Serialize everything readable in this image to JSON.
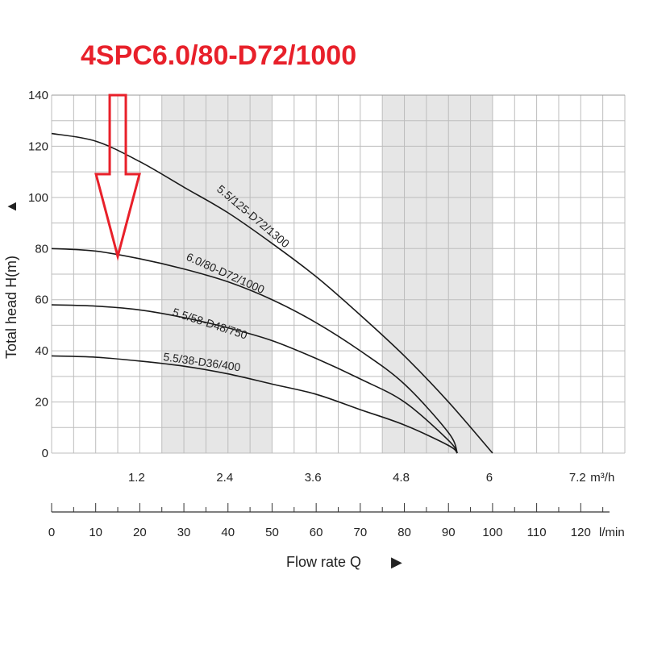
{
  "title": "4SPC6.0/80-D72/1000",
  "chart_data": {
    "type": "line",
    "ylabel": "Total head H(m)",
    "xlabel": "Flow rate Q",
    "x_unit": "l/min",
    "x2_unit": "m³/h",
    "ylim": [
      0,
      140
    ],
    "xlim": [
      0,
      130
    ],
    "y_ticks": [
      0,
      20,
      40,
      60,
      80,
      100,
      120,
      140
    ],
    "x_ticks": [
      0,
      10,
      20,
      30,
      40,
      50,
      60,
      70,
      80,
      90,
      100,
      110,
      120
    ],
    "x2_ticks": [
      "1.2",
      "2.4",
      "3.6",
      "4.8",
      "6",
      "7.2"
    ],
    "x2_tick_positions_lmin": [
      20,
      40,
      60,
      80,
      100,
      120
    ],
    "shaded_ranges_lmin": [
      [
        25,
        50
      ],
      [
        75,
        100
      ]
    ],
    "grid": true,
    "series": [
      {
        "name": "5.5/125-D72/1300",
        "x": [
          0,
          10,
          20,
          30,
          40,
          50,
          60,
          70,
          80,
          90,
          100
        ],
        "y": [
          125,
          122,
          114,
          104,
          94,
          82,
          69,
          54,
          38,
          20,
          0
        ]
      },
      {
        "name": "6.0/80-D72/1000",
        "x": [
          0,
          10,
          20,
          30,
          40,
          50,
          60,
          70,
          80,
          90,
          92
        ],
        "y": [
          80,
          79,
          76,
          72,
          67,
          60,
          51,
          40,
          27,
          8,
          0
        ]
      },
      {
        "name": "5.5/58-D48/750",
        "x": [
          0,
          10,
          20,
          30,
          40,
          50,
          60,
          70,
          80,
          90,
          92
        ],
        "y": [
          58,
          57.5,
          56,
          53,
          49,
          44,
          37,
          29,
          20,
          5,
          0
        ]
      },
      {
        "name": "5.5/38-D36/400",
        "x": [
          0,
          10,
          20,
          30,
          40,
          50,
          60,
          70,
          80,
          90,
          92
        ],
        "y": [
          38,
          37.5,
          36,
          34,
          31,
          27,
          23,
          17,
          11,
          3,
          0
        ]
      }
    ],
    "annotation": {
      "type": "arrow",
      "color": "#e8202a",
      "points_to_x_lmin": 15,
      "points_to_series": "6.0/80-D72/1000"
    }
  }
}
